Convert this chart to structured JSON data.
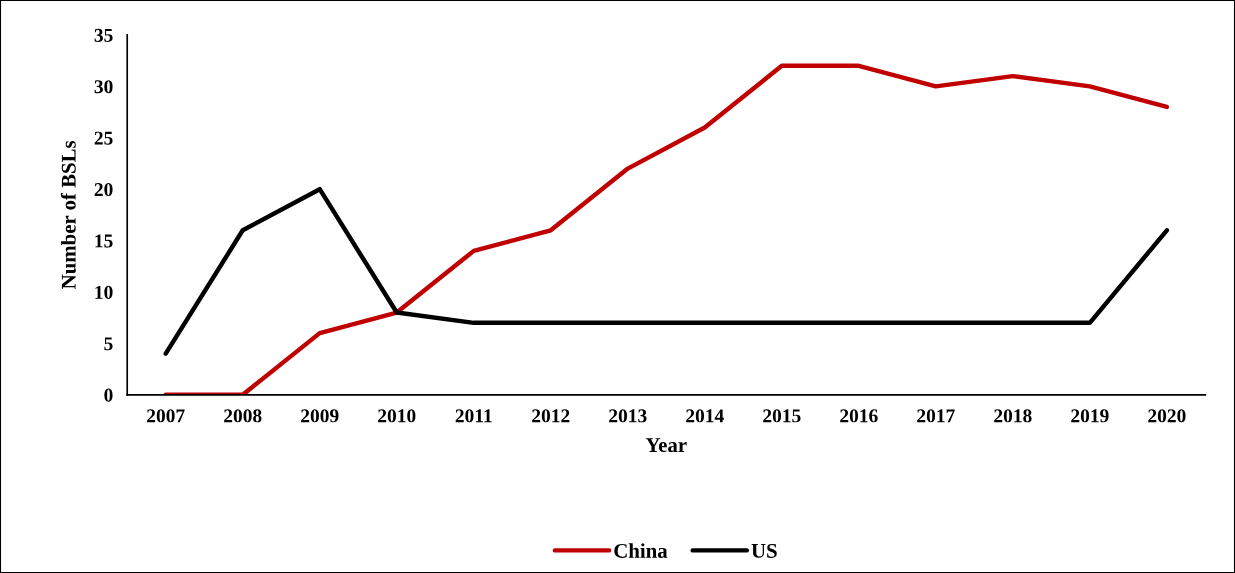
{
  "chart_data": {
    "type": "line",
    "xlabel": "Year",
    "ylabel": "Number of BSLs",
    "categories": [
      "2007",
      "2008",
      "2009",
      "2010",
      "2011",
      "2012",
      "2013",
      "2014",
      "2015",
      "2016",
      "2017",
      "2018",
      "2019",
      "2020"
    ],
    "series": [
      {
        "name": "China",
        "color": "#c00000",
        "values": [
          0,
          0,
          6,
          8,
          14,
          16,
          22,
          26,
          32,
          32,
          30,
          31,
          30,
          28
        ]
      },
      {
        "name": "US",
        "color": "#000000",
        "values": [
          4,
          16,
          20,
          8,
          7,
          7,
          7,
          7,
          7,
          7,
          7,
          7,
          7,
          16
        ]
      }
    ],
    "ylim": [
      0,
      35
    ],
    "yticks": [
      0,
      5,
      10,
      15,
      20,
      25,
      30,
      35
    ],
    "grid": false,
    "legend": "bottom",
    "marker": "none",
    "line_style": "solid"
  }
}
